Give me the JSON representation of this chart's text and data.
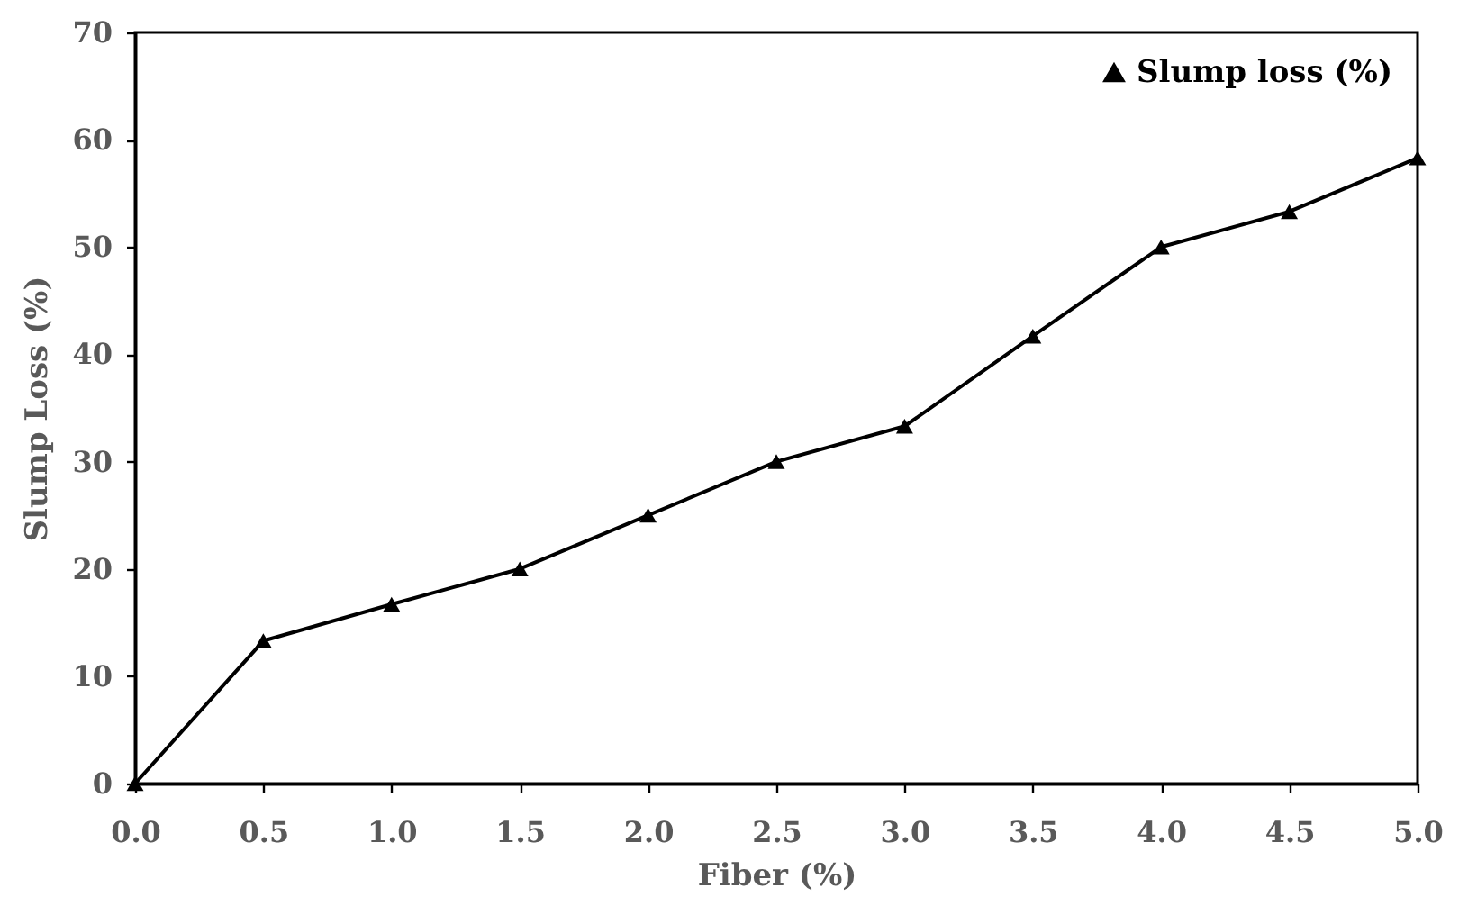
{
  "chart_data": {
    "type": "line",
    "xlabel": "Fiber (%)",
    "ylabel": "Slump Loss (%)",
    "x": [
      0,
      0.5,
      1,
      1.5,
      2,
      2.5,
      3,
      3.5,
      4,
      4.5,
      5
    ],
    "series": [
      {
        "name": "Slump loss (%)",
        "color": "#000000",
        "values": [
          0,
          13.3,
          16.7,
          20,
          25,
          30,
          33.3,
          41.7,
          50,
          53.3,
          58.3
        ]
      }
    ],
    "xlim": [
      0,
      5
    ],
    "xticks": [
      {
        "value": 0,
        "label": "0.0"
      },
      {
        "value": 0.5,
        "label": "0.5"
      },
      {
        "value": 1,
        "label": "1.0"
      },
      {
        "value": 1.5,
        "label": "1.5"
      },
      {
        "value": 2,
        "label": "2.0"
      },
      {
        "value": 2.5,
        "label": "2.5"
      },
      {
        "value": 3,
        "label": "3.0"
      },
      {
        "value": 3.5,
        "label": "3.5"
      },
      {
        "value": 4,
        "label": "4.0"
      },
      {
        "value": 4.5,
        "label": "4.5"
      },
      {
        "value": 5,
        "label": "5.0"
      }
    ],
    "ylim": [
      0,
      70
    ],
    "yticks": [
      0,
      10,
      20,
      30,
      40,
      50,
      60,
      70
    ],
    "grid": false,
    "legend": "top right",
    "marker": "triangle",
    "line_style": "solid"
  }
}
